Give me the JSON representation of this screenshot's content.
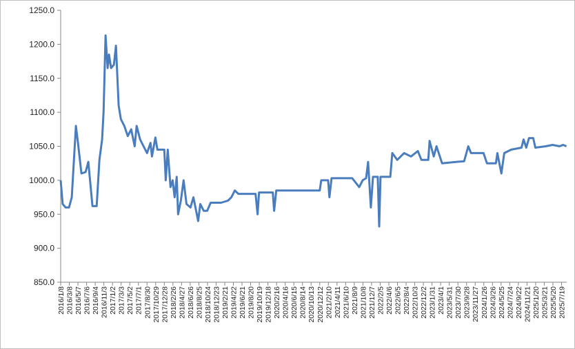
{
  "chart_data": {
    "type": "line",
    "color": "#4a7dbd",
    "x": [
      "2016/1/8",
      "2016/1/22",
      "2016/2/11",
      "2016/3/6",
      "2016/3/25",
      "2016/4/23",
      "2016/5/7",
      "2016/5/31",
      "2016/6/29",
      "2016/7/18",
      "2016/8/16",
      "2016/9/14",
      "2016/10/3",
      "2016/10/22",
      "2016/11/1",
      "2016/11/15",
      "2016/11/29",
      "2016/12/9",
      "2016/12/23",
      "2017/1/12",
      "2017/1/26",
      "2017/2/14",
      "2017/3/1",
      "2017/3/25",
      "2017/4/18",
      "2017/5/12",
      "2017/6/5",
      "2017/6/19",
      "2017/7/13",
      "2017/8/6",
      "2017/8/30",
      "2017/9/23",
      "2017/10/3",
      "2017/10/27",
      "2017/11/10",
      "2017/12/28",
      "2018/1/7",
      "2018/1/21",
      "2018/2/9",
      "2018/2/24",
      "2018/3/10",
      "2018/3/24",
      "2018/4/3",
      "2018/4/22",
      "2018/5/11",
      "2018/5/31",
      "2018/6/28",
      "2018/7/18",
      "2018/8/11",
      "2018/8/20",
      "2018/9/4",
      "2018/9/28",
      "2018/10/22",
      "2018/11/15",
      "2019/1/26",
      "2019/3/15",
      "2019/4/8",
      "2019/5/2",
      "2019/5/26",
      "2019/9/23",
      "2019/10/7",
      "2019/10/17",
      "2020/1/21",
      "2020/1/30",
      "2020/2/14",
      "2020/12/12",
      "2020/12/22",
      "2021/2/8",
      "2021/2/17",
      "2021/3/4",
      "2021/7/26",
      "2021/9/12",
      "2021/10/6",
      "2021/10/30",
      "2021/11/13",
      "2021/12/2",
      "2021/12/17",
      "2022/1/19",
      "2022/1/29",
      "2022/2/7",
      "2022/4/16",
      "2022/4/30",
      "2022/6/3",
      "2022/7/21",
      "2022/9/7",
      "2022/10/25",
      "2022/11/18",
      "2023/1/5",
      "2023/1/14",
      "2023/2/12",
      "2023/3/3",
      "2023/4/11",
      "2023/7/16",
      "2023/9/11",
      "2023/10/10",
      "2023/10/29",
      "2024/1/24",
      "2024/2/17",
      "2024/4/19",
      "2024/4/29",
      "2024/5/27",
      "2024/6/16",
      "2024/8/3",
      "2024/10/14",
      "2024/10/28",
      "2024/11/16",
      "2024/12/5",
      "2025/1/3",
      "2025/1/18",
      "2025/3/31",
      "2025/5/18",
      "2025/7/5",
      "2025/7/29",
      "2025/8/22"
    ],
    "values": [
      1000,
      965,
      960,
      960,
      975,
      1080,
      1055,
      1010,
      1012,
      1027,
      962,
      962,
      1030,
      1060,
      1100,
      1213,
      1165,
      1185,
      1165,
      1170,
      1198,
      1110,
      1090,
      1080,
      1065,
      1075,
      1050,
      1080,
      1060,
      1050,
      1040,
      1055,
      1035,
      1063,
      1045,
      1045,
      1000,
      1045,
      990,
      1000,
      975,
      1005,
      950,
      970,
      1000,
      965,
      960,
      975,
      950,
      940,
      965,
      955,
      955,
      967,
      967,
      970,
      975,
      985,
      980,
      980,
      950,
      982,
      982,
      955,
      985,
      985,
      1000,
      1000,
      975,
      1003,
      1003,
      990,
      1000,
      1003,
      1027,
      960,
      1005,
      1005,
      932,
      1005,
      1005,
      1040,
      1030,
      1040,
      1035,
      1043,
      1030,
      1030,
      1058,
      1035,
      1050,
      1025,
      1027,
      1028,
      1050,
      1040,
      1040,
      1025,
      1025,
      1040,
      1010,
      1040,
      1045,
      1048,
      1060,
      1048,
      1062,
      1062,
      1048,
      1050,
      1052,
      1050,
      1052,
      1050
    ],
    "xlim": [
      "2016/1/8",
      "2025/8/24"
    ],
    "xticks": [
      "2016/1/8",
      "2016/3/8",
      "2016/5/7",
      "2016/7/6",
      "2016/9/4",
      "2016/11/3",
      "2017/1/2",
      "2017/3/3",
      "2017/5/2",
      "2017/7/1",
      "2017/8/30",
      "2017/10/29",
      "2017/12/28",
      "2018/2/26",
      "2018/4/27",
      "2018/6/26",
      "2018/8/25",
      "2018/10/24",
      "2018/12/23",
      "2019/2/21",
      "2019/4/22",
      "2019/6/21",
      "2019/8/20",
      "2019/10/19",
      "2019/12/18",
      "2020/2/16",
      "2020/4/16",
      "2020/6/15",
      "2020/8/14",
      "2020/10/13",
      "2020/12/12",
      "2021/2/10",
      "2021/4/11",
      "2021/6/10",
      "2021/8/9",
      "2021/10/8",
      "2021/12/7",
      "2022/2/5",
      "2022/4/6",
      "2022/6/5",
      "2022/8/4",
      "2022/10/3",
      "2022/12/2",
      "2023/1/31",
      "2023/4/1",
      "2023/5/31",
      "2023/7/30",
      "2023/9/28",
      "2023/11/27",
      "2024/1/26",
      "2024/3/26",
      "2024/5/25",
      "2024/7/24",
      "2024/9/22",
      "2024/11/21",
      "2025/1/20",
      "2025/3/21",
      "2025/5/20",
      "2025/7/19"
    ],
    "ylim": [
      850,
      1250
    ],
    "yticks": [
      {
        "value": 850,
        "label": "850.0"
      },
      {
        "value": 900,
        "label": "900.0"
      },
      {
        "value": 950,
        "label": "950.0"
      },
      {
        "value": 1000,
        "label": "1000.0"
      },
      {
        "value": 1050,
        "label": "1050.0"
      },
      {
        "value": 1100,
        "label": "1100.0"
      },
      {
        "value": 1150,
        "label": "1150.0"
      },
      {
        "value": 1200,
        "label": "1200.0"
      },
      {
        "value": 1250,
        "label": "1250.0"
      }
    ],
    "grid": false
  }
}
